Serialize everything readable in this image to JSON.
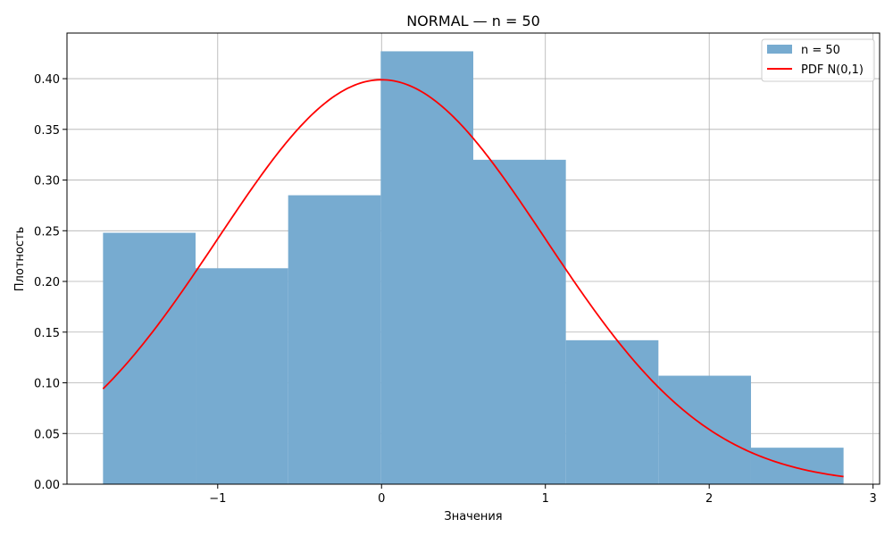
{
  "chart_data": {
    "type": "bar",
    "title": "NORMAL — n = 50",
    "xlabel": "Значения",
    "ylabel": "Плотность",
    "xlim": [
      -1.92,
      3.04
    ],
    "ylim": [
      0,
      0.445
    ],
    "grid": true,
    "legend_position": "top-right",
    "x_ticks": [
      -1,
      0,
      1,
      2,
      3
    ],
    "x_tick_labels": [
      "−1",
      "0",
      "1",
      "2",
      "3"
    ],
    "y_ticks": [
      0.0,
      0.05,
      0.1,
      0.15,
      0.2,
      0.25,
      0.3,
      0.35,
      0.4
    ],
    "y_tick_labels": [
      "0.00",
      "0.05",
      "0.10",
      "0.15",
      "0.20",
      "0.25",
      "0.30",
      "0.35",
      "0.40"
    ],
    "series": [
      {
        "name": "n = 50",
        "kind": "histogram",
        "color": "#77abd0",
        "bin_edges": [
          -1.7,
          -1.135,
          -0.57,
          -0.005,
          0.56,
          1.125,
          1.69,
          2.255,
          2.82
        ],
        "values": [
          0.248,
          0.213,
          0.285,
          0.427,
          0.32,
          0.142,
          0.107,
          0.036
        ]
      },
      {
        "name": "PDF N(0,1)",
        "kind": "line",
        "color": "#ff0000",
        "function": "normal_pdf",
        "mean": 0,
        "std": 1,
        "x_range": [
          -1.7,
          2.82
        ]
      }
    ]
  }
}
